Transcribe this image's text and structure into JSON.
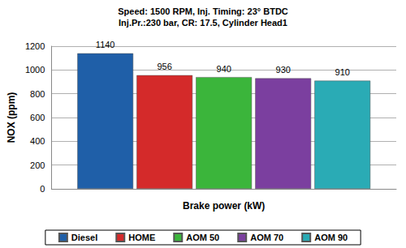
{
  "chart_data": {
    "type": "bar",
    "title": "Speed: 1500 RPM, Inj. Timing: 23° BTDC\nInj.Pr.:230 bar, CR: 17.5, Cylinder Head1",
    "x_label": "Brake power (kW)",
    "y_label": "NOX (ppm)",
    "categories": [
      null
    ],
    "series": [
      {
        "name": "Diesel",
        "color": "#1f5fa8",
        "values": [
          1140
        ]
      },
      {
        "name": "HOME",
        "color": "#d42a2a",
        "values": [
          956
        ]
      },
      {
        "name": "AOM 50",
        "color": "#3bb53b",
        "values": [
          940
        ]
      },
      {
        "name": "AOM 70",
        "color": "#7b3f9f",
        "values": [
          930
        ]
      },
      {
        "name": "AOM 90",
        "color": "#2aabb5",
        "values": [
          910
        ]
      }
    ],
    "ylim": [
      0,
      1200
    ],
    "yticks": [
      0,
      200,
      400,
      600,
      800,
      1000,
      1200
    ],
    "grid": true,
    "legend": "bottom",
    "data_labels": true
  }
}
